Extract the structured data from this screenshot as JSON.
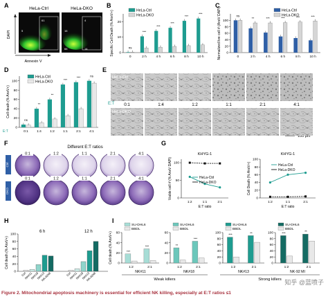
{
  "figure": {
    "caption_head": "Figure 2. Mitochondrial apoptosis machinery is essential for efficient NK killing, especially at E:T ratios",
    "caption_tail": "≤1",
    "watermark": "知乎 @蓝喷子"
  },
  "colors": {
    "teal": "#1e9c90",
    "light_gray": "#d6d6d6",
    "blue": "#2f5fa6",
    "black": "#111111",
    "light_teal": "#a7ddd6",
    "dark_teal": "#146b63"
  },
  "panelA": {
    "letter": "A",
    "ctrl_label": "HeLa-Ctrl",
    "dko_label": "HeLa-DKO",
    "y_axis": "DAPI",
    "x_axis": "Annexin V",
    "ctrl_q1": "5",
    "ctrl_q2": "61",
    "dko_q1": "16",
    "dko_q2": "4",
    "dko_q3": "66",
    "dko_q4": "14"
  },
  "panelB": {
    "letter": "B"
  },
  "panelC": {
    "letter": "C"
  },
  "panelD": {
    "letter": "D"
  },
  "panelE": {
    "letter": "E",
    "row1_label": "HeLa-Ctrl",
    "row2_label": "HeLa-DKO",
    "et_label": "E:T",
    "ratios": [
      "0:1",
      "1:4",
      "1:2",
      "1:1",
      "2:1",
      "4:1"
    ],
    "scale_label": "100 μm"
  },
  "panelF": {
    "letter": "F",
    "title": "Different E:T ratios",
    "ratios": [
      "0:1",
      "1:2",
      "1:1",
      "2:1",
      "4:1"
    ],
    "row1_label": "Ctrl",
    "row2_label": "DKO"
  },
  "panelG": {
    "letter": "G"
  },
  "panelH": {
    "letter": "H",
    "legend_6h": "6 h",
    "legend_12h": "12 h"
  },
  "panelI": {
    "letter": "I",
    "weak_label": "Weak killers",
    "strong_label": "Strong killers"
  },
  "chart_data": [
    {
      "id": "B",
      "type": "bar",
      "categories": [
        "0",
        "2 h",
        "4 h",
        "6 h",
        "8 h",
        "10 h"
      ],
      "series": [
        {
          "name": "HeLa-Ctrl",
          "values": [
            0.3,
            10.5,
            14,
            16,
            20.5,
            22
          ],
          "color": "#1e9c90"
        },
        {
          "name": "HeLa-DKO",
          "values": [
            0.3,
            3,
            3.5,
            4,
            4.5,
            5
          ],
          "color": "#d6d6d6"
        }
      ],
      "annotations": [
        "ns",
        "***",
        "***",
        "***",
        "***",
        "***"
      ],
      "ylabel": "Specific Cell Death (% AnxV+)",
      "ylim": [
        0,
        25
      ],
      "yticks": [
        0,
        10,
        20
      ]
    },
    {
      "id": "C",
      "type": "bar",
      "categories": [
        "0",
        "2 h",
        "4 h",
        "6 h",
        "8 h",
        "10 h"
      ],
      "series": [
        {
          "name": "HeLa-Ctrl",
          "values": [
            100,
            75,
            62,
            50,
            45,
            38
          ],
          "color": "#2f5fa6"
        },
        {
          "name": "HeLa-DKO",
          "values": [
            100,
            92,
            92,
            93,
            95,
            98
          ],
          "color": "#d6d6d6"
        }
      ],
      "annotations": [
        "ns",
        "**",
        "***",
        "***",
        "***",
        "***"
      ],
      "ylabel": "Normalized live cell # (AnxV DAPI)",
      "ylim": [
        0,
        120
      ],
      "yticks": [
        0,
        20,
        40,
        60,
        80,
        100
      ]
    },
    {
      "id": "D",
      "type": "bar",
      "categories": [
        "0:1",
        "1:4",
        "1:2",
        "1:1",
        "2:1",
        "4:1"
      ],
      "series": [
        {
          "name": "HeLa-Ctrl",
          "values": [
            6,
            40,
            60,
            92,
            97,
            100
          ],
          "color": "#1e9c90"
        },
        {
          "name": "HeLa-DKO",
          "values": [
            5,
            10,
            18,
            25,
            40,
            95
          ],
          "color": "#e8e8e8"
        }
      ],
      "annotations": [
        "ns",
        "**",
        "**",
        "***",
        "***",
        "ns"
      ],
      "xlabel": "E:T",
      "ylabel": "Cell death (% AnxV+)",
      "ylim": [
        0,
        110
      ],
      "yticks": [
        0,
        20,
        40,
        60,
        80,
        100
      ]
    },
    {
      "id": "G1",
      "type": "line",
      "title": "KHYG-1",
      "x": [
        "1:2",
        "1:1",
        "2:1"
      ],
      "series": [
        {
          "name": "HeLa-Ctrl",
          "values": [
            60,
            40,
            30
          ],
          "color": "#1e9c90"
        },
        {
          "name": "HeLa-DKO",
          "values": [
            100,
            98,
            98
          ],
          "color": "#111111"
        }
      ],
      "xlabel": "E:T ratio",
      "ylabel": "Viable cell # (% AnxV DAPI)",
      "ylim": [
        0,
        110
      ],
      "yticks": [
        0,
        50,
        100
      ]
    },
    {
      "id": "G2",
      "type": "line",
      "title": "KHYG-1",
      "x": [
        "1:2",
        "1:1",
        "2:1"
      ],
      "series": [
        {
          "name": "HeLa-Ctrl",
          "values": [
            40,
            60,
            65
          ],
          "color": "#1e9c90"
        },
        {
          "name": "HeLa-DKO",
          "values": [
            3,
            3,
            4
          ],
          "color": "#111111"
        }
      ],
      "xlabel": "E:T ratio",
      "ylabel": "Cell Death (% AnxV+)",
      "ylim": [
        0,
        100
      ],
      "yticks": [
        0,
        20,
        40,
        60,
        80,
        100
      ]
    },
    {
      "id": "H",
      "type": "bar",
      "categories": [
        "Ctrl",
        "NK#11",
        "NK#18",
        "NK#13",
        "NK-92MI"
      ],
      "groups": [
        {
          "name": "6 h",
          "values": [
            3,
            5,
            18,
            43,
            41
          ]
        },
        {
          "name": "12 h",
          "values": [
            3,
            7,
            26,
            55,
            80
          ]
        }
      ],
      "colors": [
        "#f5f5f5",
        "#cfeee9",
        "#8fd5cb",
        "#1e9c90",
        "#146b63"
      ],
      "ylabel": "Cell death (% AnxV+)",
      "ylim": [
        0,
        100
      ],
      "yticks": [
        0,
        20,
        40,
        60,
        80,
        100
      ]
    },
    {
      "id": "I1",
      "type": "bar",
      "title": "NK#11",
      "categories": [
        "1:2",
        "2:1"
      ],
      "series": [
        {
          "name": "SU-DHL6",
          "values": [
            18,
            28
          ],
          "color": "#a7ddd6"
        },
        {
          "name": "BBDL",
          "values": [
            4,
            5
          ],
          "color": "#e8e8e8"
        }
      ],
      "annotations": [
        "***",
        "***"
      ],
      "ylabel": "Cell death (% AnxV+)",
      "ylim": [
        0,
        60
      ],
      "yticks": [
        0,
        20,
        40,
        60
      ]
    },
    {
      "id": "I2",
      "type": "bar",
      "title": "NK#18",
      "categories": [
        "1:2",
        "2:1"
      ],
      "series": [
        {
          "name": "SU-DHL6",
          "values": [
            30,
            43
          ],
          "color": "#6cc7bb"
        },
        {
          "name": "BBDL",
          "values": [
            6,
            10
          ],
          "color": "#e8e8e8"
        }
      ],
      "annotations": [
        "**",
        "***"
      ],
      "ylim": [
        0,
        60
      ],
      "yticks": [
        0,
        20,
        40,
        60
      ]
    },
    {
      "id": "I3",
      "type": "bar",
      "title": "NK#13",
      "categories": [
        "1:2",
        "2:1"
      ],
      "series": [
        {
          "name": "SU-DHL6",
          "values": [
            85,
            90
          ],
          "color": "#1e9c90"
        },
        {
          "name": "BBDL",
          "values": [
            20,
            68
          ],
          "color": "#e8e8e8"
        }
      ],
      "annotations": [
        "***",
        "**"
      ],
      "ylim": [
        0,
        100
      ],
      "yticks": [
        0,
        20,
        40,
        60,
        80,
        100
      ]
    },
    {
      "id": "I4",
      "type": "bar",
      "title": "NK-92 MI",
      "categories": [
        "1:2",
        "2:1"
      ],
      "series": [
        {
          "name": "SU-DHL6",
          "values": [
            90,
            95
          ],
          "color": "#146b63"
        },
        {
          "name": "BBDL",
          "values": [
            23,
            72
          ],
          "color": "#e8e8e8"
        }
      ],
      "annotations": [
        "***",
        "**"
      ],
      "ylim": [
        0,
        100
      ],
      "yticks": [
        0,
        20,
        40,
        60,
        80,
        100
      ]
    }
  ]
}
